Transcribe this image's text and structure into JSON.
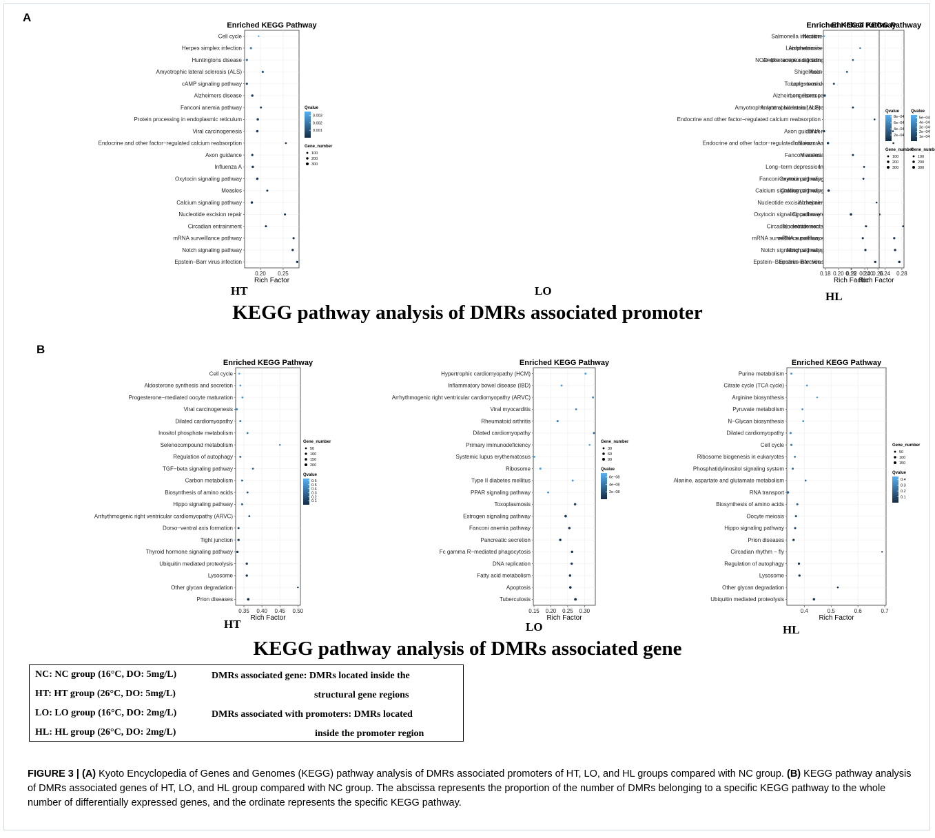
{
  "section_a_label": "A",
  "section_b_label": "B",
  "section_a_title": "KEGG pathway analysis of DMRs associated promoter",
  "section_b_title": "KEGG pathway analysis of DMRs associated gene",
  "colors": {
    "low": "#132b43",
    "high": "#56b1f7",
    "grid": "#ebebeb",
    "panel_border": "#333333"
  },
  "chart_data": [
    {
      "type": "scatter",
      "panel": "A-HT",
      "title": "Enriched KEGG Pathway",
      "xlabel": "Rich Factor",
      "group_label": "HT",
      "xlim": [
        0.165,
        0.285
      ],
      "xticks": [
        0.2,
        0.25
      ],
      "xtick_labels": [
        "0.20",
        "0.25"
      ],
      "color_legend": {
        "title": "Qvalue",
        "min": 0.0,
        "max": 0.0035,
        "ticks": [
          0.003,
          0.002,
          0.001
        ],
        "tick_labels": [
          "0.003",
          "0.002",
          "0.001"
        ]
      },
      "size_legend": {
        "title": "Gene_number",
        "values": [
          100,
          200,
          300
        ]
      },
      "categories": [
        "Cell cycle",
        "Herpes simplex infection",
        "Huntingtons disease",
        "Amyotrophic lateral sclerosis (ALS)",
        "cAMP signaling pathway",
        "Alzheimers disease",
        "Fanconi anemia pathway",
        "Protein processing in endoplasmic reticulum",
        "Viral carcinogenesis",
        "Endocrine and other factor−regulated calcium reabsorption",
        "Axon guidance",
        "Influenza A",
        "Oxytocin signaling pathway",
        "Measles",
        "Calcium signaling pathway",
        "Nucleotide excision repair",
        "Circadian entrainment",
        "mRNA surveillance pathway",
        "Notch signaling pathway",
        "Epstein−Barr virus infection"
      ],
      "x": [
        0.196,
        0.179,
        0.17,
        0.205,
        0.17,
        0.182,
        0.201,
        0.194,
        0.193,
        0.256,
        0.182,
        0.183,
        0.193,
        0.215,
        0.181,
        0.254,
        0.212,
        0.273,
        0.271,
        0.281
      ],
      "qvalue": [
        0.0032,
        0.0022,
        0.0019,
        0.0011,
        0.0009,
        0.0006,
        0.0005,
        0.0005,
        0.0004,
        0.0003,
        0.0003,
        0.0003,
        0.0002,
        0.0002,
        0.0002,
        0.0001,
        0.0001,
        0.0,
        0.0,
        0.0
      ],
      "gene_number": [
        60,
        150,
        150,
        150,
        150,
        200,
        120,
        200,
        200,
        80,
        150,
        200,
        200,
        120,
        200,
        120,
        130,
        140,
        160,
        180
      ]
    },
    {
      "type": "scatter",
      "panel": "A-LO",
      "title": "Enriched KEGG Pathway",
      "xlabel": "Rich Factor",
      "group_label": "LO",
      "xlim": [
        0.155,
        0.285
      ],
      "xticks": [
        0.16,
        0.2,
        0.24,
        0.28
      ],
      "xtick_labels": [
        "0.16",
        "0.20",
        "0.24",
        "0.28"
      ],
      "color_legend": {
        "title": "Qvalue",
        "min": 0.0,
        "max": 0.00055,
        "ticks": [
          0.0005,
          0.0004,
          0.0003,
          0.0002,
          0.0001
        ],
        "tick_labels": [
          "5e−04",
          "4e−04",
          "3e−04",
          "2e−04",
          "1e−04"
        ]
      },
      "size_legend": {
        "title": "Gene_number",
        "values": [
          100,
          200,
          300
        ]
      },
      "categories": [
        "Nicotine addiction",
        "Amphetamine addiction",
        "NOD−like receptor signaling pathway",
        "Axon guidance",
        "Long−term depression",
        "Long−term potentiation",
        "Amyotrophic lateral sclerosis (ALS)",
        "Measles",
        "DNA replication",
        "Endocrine and other factor−regulated calcium reabsorption",
        "Fanconi anemia pathway",
        "Influenza A",
        "Oxytocin signaling pathway",
        "Calcium signaling pathway",
        "Alzheimers disease",
        "Circadian entrainment",
        "Nucleotide excision repair",
        "mRNA surveillance pathway",
        "Notch signaling pathway",
        "Epstein−Barr virus infection"
      ],
      "x": [
        0.224,
        0.219,
        0.157,
        0.157,
        0.2,
        0.221,
        0.216,
        0.204,
        0.259,
        0.26,
        0.219,
        0.174,
        0.186,
        0.174,
        0.205,
        0.227,
        0.283,
        0.262,
        0.264,
        0.274
      ],
      "qvalue": [
        0.00048,
        0.00036,
        0.00028,
        0.00022,
        0.00018,
        0.00015,
        0.00012,
        0.0001,
        8e-05,
        7e-05,
        6e-05,
        5e-05,
        4e-05,
        3e-05,
        3e-05,
        2e-05,
        2e-05,
        1e-05,
        0.0,
        0.0
      ],
      "gene_number": [
        60,
        80,
        150,
        150,
        100,
        100,
        120,
        150,
        80,
        90,
        120,
        180,
        200,
        200,
        200,
        130,
        100,
        150,
        170,
        190
      ]
    },
    {
      "type": "scatter",
      "panel": "A-HL",
      "title": "Enriched KEGG Pathway",
      "xlabel": "Rich Factor",
      "group_label": "HL",
      "xlim": [
        0.177,
        0.262
      ],
      "xticks": [
        0.18,
        0.2,
        0.22,
        0.24,
        0.26
      ],
      "xtick_labels": [
        "0.18",
        "0.20",
        "0.22",
        "0.24",
        "0.26"
      ],
      "color_legend": {
        "title": "Qvalue",
        "min": 0.0,
        "max": 0.00085,
        "ticks": [
          0.0008,
          0.0006,
          0.0004,
          0.0002
        ],
        "tick_labels": [
          "8e−04",
          "6e−04",
          "4e−04",
          "2e−04"
        ]
      },
      "size_legend": {
        "title": "Gene_number",
        "values": [
          100,
          200,
          300
        ]
      },
      "categories": [
        "Salmonella infection",
        "Leishmaniasis",
        "Amphetamine addiction",
        "Shigellosis",
        "Toxoplasmosis",
        "Alzheimers disease",
        "Amyotrophic lateral sclerosis (ALS)",
        "Endocrine and other factor−regulated calcium reabsorption",
        "Axon guidance",
        "Influenza A",
        "Measles",
        "Long−term depression",
        "Fanconi anemia pathway",
        "Calcium signaling pathway",
        "Nucleotide excision repair",
        "Oxytocin signaling pathway",
        "Circadian entrainment",
        "mRNA surveillance pathway",
        "Notch signaling pathway",
        "Epstein−Barr virus infection"
      ],
      "x": [
        0.178,
        0.233,
        0.222,
        0.213,
        0.193,
        0.179,
        0.222,
        0.255,
        0.178,
        0.184,
        0.222,
        0.239,
        0.238,
        0.185,
        0.258,
        0.219,
        0.242,
        0.237,
        0.241,
        0.256
      ],
      "qvalue": [
        0.00078,
        0.00045,
        0.0003,
        0.00025,
        0.0002,
        0.00015,
        0.0001,
        8e-05,
        6e-05,
        5e-05,
        4e-05,
        3e-05,
        3e-05,
        2e-05,
        2e-05,
        1e-05,
        1e-05,
        0.0,
        0.0,
        0.0
      ],
      "gene_number": [
        80,
        60,
        90,
        100,
        120,
        200,
        130,
        70,
        150,
        190,
        130,
        100,
        100,
        200,
        70,
        200,
        130,
        140,
        160,
        180
      ]
    },
    {
      "type": "scatter",
      "panel": "B-HT",
      "title": "Enriched KEGG Pathway",
      "xlabel": "Rich Factor",
      "group_label": "HT",
      "xlim": [
        0.327,
        0.507
      ],
      "xticks": [
        0.35,
        0.4,
        0.45,
        0.5
      ],
      "xtick_labels": [
        "0.35",
        "0.40",
        "0.45",
        "0.50"
      ],
      "color_legend": {
        "title": "Qvalue",
        "min": 0.0,
        "max": 0.65,
        "ticks": [
          0.6,
          0.5,
          0.4,
          0.3,
          0.2,
          0.1
        ],
        "tick_labels": [
          "0.6",
          "0.5",
          "0.4",
          "0.3",
          "0.2",
          "0.1"
        ]
      },
      "size_legend": {
        "title": "Gene_number",
        "values": [
          50,
          100,
          150,
          200
        ]
      },
      "categories": [
        "Cell cycle",
        "Aldosterone synthesis and secretion",
        "Progesterone−mediated oocyte maturation",
        "Viral carcinogenesis",
        "Dilated cardiomyopathy",
        "Inositol phosphate metabolism",
        "Selenocompound metabolism",
        "Regulation of autophagy",
        "TGF−beta signaling pathway",
        "Carbon metabolism",
        "Biosynthesis of amino acids",
        "Hippo signaling pathway",
        "Arrhythmogenic right ventricular cardiomyopathy (ARVC)",
        "Dorso−ventral axis formation",
        "Tight junction",
        "Thyroid hormone signaling pathway",
        "Ubiquitin mediated proteolysis",
        "Lysosome",
        "Other glycan degradation",
        "Prion diseases"
      ],
      "x": [
        0.337,
        0.34,
        0.346,
        0.33,
        0.34,
        0.36,
        0.45,
        0.34,
        0.375,
        0.345,
        0.36,
        0.345,
        0.365,
        0.335,
        0.335,
        0.332,
        0.358,
        0.358,
        0.5,
        0.362
      ],
      "qvalue": [
        0.6,
        0.55,
        0.5,
        0.45,
        0.4,
        0.35,
        0.3,
        0.28,
        0.25,
        0.22,
        0.2,
        0.18,
        0.15,
        0.12,
        0.1,
        0.08,
        0.06,
        0.05,
        0.03,
        0.02
      ],
      "gene_number": [
        50,
        60,
        70,
        100,
        80,
        60,
        30,
        70,
        60,
        60,
        70,
        70,
        60,
        80,
        120,
        120,
        110,
        120,
        40,
        160
      ]
    },
    {
      "type": "scatter",
      "panel": "B-LO",
      "title": "Enriched KEGG Pathway",
      "xlabel": "Rich Factor",
      "group_label": "LO",
      "xlim": [
        0.148,
        0.332
      ],
      "xticks": [
        0.15,
        0.2,
        0.25,
        0.3
      ],
      "xtick_labels": [
        "0.15",
        "0.20",
        "0.25",
        "0.30"
      ],
      "color_legend": {
        "title": "Qvalue",
        "min": 0.0,
        "max": 7e-08,
        "ticks": [
          6e-08,
          4e-08,
          2e-08
        ],
        "tick_labels": [
          "6e−08",
          "4e−08",
          "2e−08"
        ]
      },
      "size_legend": {
        "title": "Gene_number",
        "values": [
          30,
          60,
          90
        ]
      },
      "categories": [
        "Hypertrophic cardiomyopathy (HCM)",
        "Inflammatory bowel disease (IBD)",
        "Arrhythmogenic right ventricular cardiomyopathy (ARVC)",
        "Viral myocarditis",
        "Rheumatoid arthritis",
        "Dilated cardiomyopathy",
        "Primary immunodeficiency",
        "Systemic lupus erythematosus",
        "Ribosome",
        "Type II diabetes mellitus",
        "PPAR signaling pathway",
        "Toxoplasmosis",
        "Estrogen signaling pathway",
        "Fanconi anemia pathway",
        "Pancreatic secretion",
        "Fc gamma R−mediated phagocytosis",
        "DNA replication",
        "Fatty acid metabolism",
        "Apoptosis",
        "Tuberculosis"
      ],
      "x": [
        0.303,
        0.232,
        0.325,
        0.275,
        0.22,
        0.328,
        0.315,
        0.151,
        0.169,
        0.265,
        0.192,
        0.272,
        0.244,
        0.255,
        0.228,
        0.263,
        0.262,
        0.257,
        0.258,
        0.273
      ],
      "qvalue": [
        6.5e-08,
        5.5e-08,
        5e-08,
        4.5e-08,
        4e-08,
        3.5e-08,
        6e-08,
        6e-08,
        6.5e-08,
        5.5e-08,
        5e-08,
        1e-08,
        8e-09,
        7e-09,
        6e-09,
        5e-09,
        4e-09,
        3e-09,
        2e-09,
        1e-09
      ],
      "gene_number": [
        40,
        30,
        40,
        30,
        40,
        40,
        20,
        30,
        50,
        30,
        30,
        60,
        70,
        60,
        60,
        60,
        50,
        60,
        70,
        80
      ]
    },
    {
      "type": "scatter",
      "panel": "B-HL",
      "title": "Enriched KEGG Pathway",
      "xlabel": "Rich Factor",
      "group_label": "HL",
      "xlim": [
        0.335,
        0.705
      ],
      "xticks": [
        0.4,
        0.5,
        0.6,
        0.7
      ],
      "xtick_labels": [
        "0.4",
        "0.5",
        "0.6",
        "0.7"
      ],
      "color_legend": {
        "title": "Qvalue",
        "min": 0.0,
        "max": 0.45,
        "ticks": [
          0.4,
          0.3,
          0.2,
          0.1
        ],
        "tick_labels": [
          "0.4",
          "0.3",
          "0.2",
          "0.1"
        ]
      },
      "size_legend": {
        "title": "Gene_number",
        "values": [
          50,
          100,
          150
        ]
      },
      "categories": [
        "Purine metabolism",
        "Citrate cycle (TCA cycle)",
        "Arginine biosynthesis",
        "Pyruvate metabolism",
        "N−Glycan biosynthesis",
        "Dilated cardiomyopathy",
        "Cell cycle",
        "Ribosome biogenesis in eukaryotes",
        "Phosphatidylinositol signaling system",
        "Alanine, aspartate and glutamate metabolism",
        "RNA transport",
        "Biosynthesis of amino acids",
        "Oocyte meiosis",
        "Hippo signaling pathway",
        "Prion diseases",
        "Circadian rhythm − fly",
        "Regulation of autophagy",
        "Lysosome",
        "Other glycan degradation",
        "Ubiquitin mediated proteolysis"
      ],
      "x": [
        0.352,
        0.41,
        0.448,
        0.393,
        0.396,
        0.349,
        0.352,
        0.365,
        0.357,
        0.405,
        0.339,
        0.374,
        0.369,
        0.366,
        0.36,
        0.69,
        0.38,
        0.382,
        0.525,
        0.436
      ],
      "qvalue": [
        0.38,
        0.36,
        0.34,
        0.32,
        0.3,
        0.28,
        0.26,
        0.24,
        0.22,
        0.2,
        0.18,
        0.16,
        0.12,
        0.1,
        0.05,
        0.04,
        0.03,
        0.02,
        0.02,
        0.01
      ],
      "gene_number": [
        60,
        40,
        30,
        40,
        40,
        60,
        70,
        50,
        60,
        40,
        100,
        60,
        70,
        70,
        90,
        20,
        80,
        80,
        40,
        100
      ]
    }
  ],
  "legend": {
    "left": [
      "NC: NC group (16°C, DO: 5mg/L)",
      "HT: HT group (26°C, DO: 5mg/L)",
      "LO: LO group (16°C, DO: 2mg/L)",
      "HL: HL group (26°C, DO: 2mg/L)"
    ],
    "right": [
      "DMRs associated gene: DMRs located inside the",
      "structural gene regions",
      "DMRs associated with promoters: DMRs located",
      "inside the promoter region"
    ]
  },
  "caption": {
    "label": "FIGURE 3 |",
    "a": "(A)",
    "a_text": "Kyoto Encyclopedia of Genes and Genomes (KEGG) pathway analysis of DMRs associated promoters of HT, LO, and HL groups compared with NC group.",
    "b": "(B)",
    "b_text": "KEGG pathway analysis of DMRs associated genes of HT, LO, and HL group compared with NC group. The abscissa represents the proportion of the number of DMRs belonging to a specific KEGG pathway to the whole number of differentially expressed genes, and the ordinate represents the specific KEGG pathway."
  }
}
